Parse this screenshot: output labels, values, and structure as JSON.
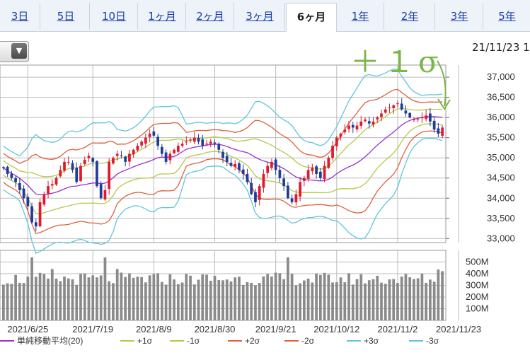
{
  "tabs": [
    {
      "label": "3日",
      "active": false
    },
    {
      "label": "5日",
      "active": false
    },
    {
      "label": "10日",
      "active": false
    },
    {
      "label": "1ヶ月",
      "active": false
    },
    {
      "label": "2ヶ月",
      "active": false
    },
    {
      "label": "3ヶ月",
      "active": false
    },
    {
      "label": "6ヶ月",
      "active": true
    },
    {
      "label": "1年",
      "active": false
    },
    {
      "label": "2年",
      "active": false
    },
    {
      "label": "3年",
      "active": false
    },
    {
      "label": "5年",
      "active": false
    }
  ],
  "date_label": "21/11/23 1",
  "annotation": "＋１σ",
  "colors": {
    "up": "#e0192b",
    "down": "#1f3c9c",
    "ma": "#9b30d0",
    "s1": "#b6c94a",
    "s2": "#e0603a",
    "s3": "#5fc6db",
    "volume": "#8a8a8a",
    "grid": "#bbbbbb",
    "annotation": "#7ab648"
  },
  "chart_data": {
    "type": "candlestick",
    "price_axis": {
      "ylim": [
        32900,
        37300
      ],
      "ticks": [
        33000,
        33500,
        34000,
        34500,
        35000,
        35500,
        36000,
        36500,
        37000
      ],
      "tick_labels": [
        "33,000",
        "33,500",
        "34,000",
        "34,500",
        "35,000",
        "35,500",
        "36,000",
        "36,500",
        "37,000"
      ]
    },
    "volume_axis": {
      "ylim": [
        0,
        600
      ],
      "ticks": [
        100,
        200,
        300,
        400,
        500
      ],
      "tick_labels": [
        "100M",
        "200M",
        "300M",
        "400M",
        "500M"
      ]
    },
    "x_labels": [
      "2021/6/25",
      "2021/7/19",
      "2021/8/9",
      "2021/8/30",
      "2021/9/21",
      "2021/10/12",
      "2021/11/2",
      "2021/11/23"
    ],
    "x_label_index": [
      6,
      22,
      37,
      52,
      67,
      82,
      97,
      112
    ],
    "legend": [
      {
        "label": "単純移動平均(20)",
        "color": "#9b30d0"
      },
      {
        "label": "+1σ",
        "color": "#b6c94a"
      },
      {
        "label": "-1σ",
        "color": "#b6c94a"
      },
      {
        "label": "+2σ",
        "color": "#e0603a"
      },
      {
        "label": "-2σ",
        "color": "#e0603a"
      },
      {
        "label": "+3σ",
        "color": "#5fc6db"
      },
      {
        "label": "-3σ",
        "color": "#5fc6db"
      }
    ],
    "close": [
      34750,
      34600,
      34500,
      34400,
      34200,
      34000,
      33800,
      33400,
      33300,
      33900,
      34100,
      34300,
      34350,
      34500,
      34700,
      34900,
      34900,
      34700,
      34400,
      34800,
      34950,
      35050,
      34900,
      34300,
      34000,
      34200,
      34900,
      35000,
      35100,
      35050,
      34900,
      35100,
      35200,
      35300,
      35400,
      35500,
      35600,
      35550,
      35300,
      35100,
      34900,
      35100,
      35200,
      35300,
      35350,
      35400,
      35450,
      35500,
      35400,
      35300,
      35350,
      35400,
      35350,
      35200,
      35000,
      34900,
      34800,
      34850,
      34700,
      34600,
      34400,
      34100,
      33900,
      34300,
      34600,
      34800,
      34900,
      34700,
      34500,
      34300,
      34000,
      33900,
      34100,
      34400,
      34500,
      34700,
      34750,
      34600,
      34500,
      34800,
      35000,
      35300,
      35500,
      35600,
      35700,
      35800,
      35750,
      35800,
      35900,
      35950,
      35850,
      35900,
      36000,
      36100,
      36200,
      36250,
      36300,
      36350,
      36200,
      36100,
      36000,
      35950,
      35950,
      36000,
      36050,
      35900,
      35700,
      35600,
      35750
    ]
  }
}
